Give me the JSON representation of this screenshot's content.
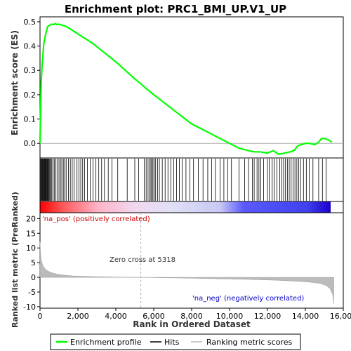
{
  "chart_data": {
    "type": "line",
    "title": "Enrichment plot: PRC1_BMI_UP.V1_UP",
    "xlabel": "Rank in Ordered Dataset",
    "ylabel_top": "Enrichment score (ES)",
    "ylabel_bottom": "Ranked list metric (PreRanked)",
    "x_ticks": [
      "0",
      "2,000",
      "4,000",
      "6,000",
      "8,000",
      "10,000",
      "12,000",
      "14,000",
      "16,000"
    ],
    "x_tick_values": [
      0,
      2000,
      4000,
      6000,
      8000,
      10000,
      12000,
      14000,
      16000
    ],
    "xlim": [
      0,
      16000
    ],
    "es_ylim": [
      -0.06,
      0.52
    ],
    "es_y_ticks": [
      "0.0",
      "0.1",
      "0.2",
      "0.3",
      "0.4",
      "0.5"
    ],
    "es_y_tick_values": [
      0.0,
      0.1,
      0.2,
      0.3,
      0.4,
      0.5
    ],
    "metric_ylim": [
      -10.5,
      22
    ],
    "metric_y_ticks": [
      "-10",
      "-5",
      "0",
      "5",
      "10",
      "15",
      "20"
    ],
    "metric_y_tick_values": [
      -10,
      -5,
      0,
      5,
      10,
      15,
      20
    ],
    "legend_placement": "bottom",
    "legend": [
      {
        "label": "Enrichment profile",
        "color": "#00ff00"
      },
      {
        "label": "Hits",
        "color": "#000000"
      },
      {
        "label": "Ranking metric scores",
        "color": "#bbbbbb"
      }
    ],
    "annotations": {
      "pos": "'na_pos' (positively correlated)",
      "neg": "'na_neg' (negatively correlated)",
      "zero_cross": "Zero cross at 5318"
    },
    "zero_cross": 5318,
    "total_rank": 15500,
    "series": [
      {
        "name": "Enrichment profile",
        "color": "#00ff00",
        "x": [
          0,
          60,
          120,
          200,
          300,
          400,
          500,
          600,
          700,
          800,
          900,
          1000,
          1200,
          1400,
          1700,
          2000,
          2400,
          2800,
          3200,
          3600,
          4000,
          4500,
          5000,
          5318,
          5600,
          6000,
          6500,
          7000,
          7500,
          8000,
          8500,
          9000,
          9500,
          10000,
          10500,
          11000,
          11300,
          11600,
          12000,
          12300,
          12600,
          12900,
          13200,
          13400,
          13600,
          13800,
          14000,
          14200,
          14500,
          14700,
          14850,
          15000,
          15200,
          15400
        ],
        "y": [
          0.0,
          0.25,
          0.33,
          0.41,
          0.45,
          0.48,
          0.485,
          0.49,
          0.488,
          0.492,
          0.488,
          0.49,
          0.485,
          0.48,
          0.465,
          0.45,
          0.43,
          0.41,
          0.385,
          0.36,
          0.335,
          0.3,
          0.265,
          0.245,
          0.225,
          0.2,
          0.17,
          0.14,
          0.11,
          0.08,
          0.06,
          0.04,
          0.02,
          0.0,
          -0.02,
          -0.03,
          -0.035,
          -0.035,
          -0.04,
          -0.03,
          -0.045,
          -0.04,
          -0.035,
          -0.03,
          -0.01,
          -0.005,
          0.0,
          0.0,
          -0.005,
          0.005,
          0.02,
          0.02,
          0.015,
          0.005
        ]
      },
      {
        "name": "Ranking metric scores",
        "color": "#bbbbbb",
        "x": [
          0,
          30,
          80,
          150,
          250,
          400,
          600,
          900,
          1300,
          1800,
          2500,
          3500,
          4500,
          5318,
          6500,
          8000,
          9500,
          11000,
          12500,
          13500,
          14200,
          14800,
          15100,
          15300,
          15450,
          15500
        ],
        "y": [
          12,
          8,
          5.5,
          4,
          3,
          2.2,
          1.6,
          1.1,
          0.7,
          0.45,
          0.3,
          0.15,
          0.05,
          0,
          -0.15,
          -0.3,
          -0.5,
          -0.7,
          -1.0,
          -1.3,
          -1.6,
          -2.1,
          -2.8,
          -3.8,
          -6.0,
          -9.0
        ]
      }
    ],
    "hits": [
      15,
      45,
      80,
      110,
      140,
      170,
      200,
      230,
      260,
      290,
      320,
      350,
      380,
      410,
      440,
      480,
      520,
      560,
      620,
      680,
      750,
      820,
      900,
      1000,
      1080,
      1150,
      1230,
      1300,
      1380,
      1500,
      1600,
      1700,
      1800,
      1950,
      2050,
      2150,
      2250,
      2350,
      2500,
      2650,
      2800,
      2950,
      3100,
      3250,
      3400,
      3600,
      3800,
      4100,
      4600,
      5000,
      5200,
      5500,
      5600,
      5700,
      5780,
      5850,
      5900,
      5960,
      6030,
      6100,
      6200,
      6300,
      6450,
      6600,
      6750,
      6900,
      7050,
      7200,
      7350,
      7500,
      7700,
      7900,
      8100,
      8350,
      8600,
      8850,
      9050,
      9250,
      9500,
      9700,
      9900,
      10100,
      10500,
      10800,
      11000,
      11200,
      11300,
      11450,
      11550,
      11650,
      11800,
      12000,
      12100,
      12250,
      12350,
      12500,
      12650,
      12750,
      12850,
      12950,
      13050,
      13150,
      13250,
      13350,
      13450,
      13550,
      13650,
      13750,
      13900,
      14050,
      14200,
      14400,
      14700,
      14900,
      15100
    ]
  }
}
